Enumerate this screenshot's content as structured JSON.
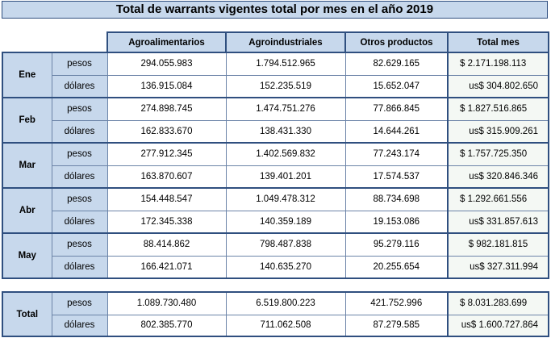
{
  "title": "Total de warrants vigentes total por mes en el año 2019",
  "headers": [
    "Agroalimentarios",
    "Agroindustriales",
    "Otros productos",
    "Total mes"
  ],
  "unit_labels": {
    "pesos": "pesos",
    "dolares": "dólares"
  },
  "months": [
    {
      "label": "Ene",
      "pesos": [
        "294.055.983",
        "1.794.512.965",
        "82.629.165",
        "$ 2.171.198.113"
      ],
      "dolares": [
        "136.915.084",
        "152.235.519",
        "15.652.047",
        "us$ 304.802.650"
      ]
    },
    {
      "label": "Feb",
      "pesos": [
        "274.898.745",
        "1.474.751.276",
        "77.866.845",
        "$ 1.827.516.865"
      ],
      "dolares": [
        "162.833.670",
        "138.431.330",
        "14.644.261",
        "us$ 315.909.261"
      ]
    },
    {
      "label": "Mar",
      "pesos": [
        "277.912.345",
        "1.402.569.832",
        "77.243.174",
        "$ 1.757.725.350"
      ],
      "dolares": [
        "163.870.607",
        "139.401.201",
        "17.574.537",
        "us$ 320.846.346"
      ]
    },
    {
      "label": "Abr",
      "pesos": [
        "154.448.547",
        "1.049.478.312",
        "88.734.698",
        "$ 1.292.661.556"
      ],
      "dolares": [
        "172.345.338",
        "140.359.189",
        "19.153.086",
        "us$ 331.857.613"
      ]
    },
    {
      "label": "May",
      "pesos": [
        "88.414.862",
        "798.487.838",
        "95.279.116",
        "$ 982.181.815"
      ],
      "dolares": [
        "166.421.071",
        "140.635.270",
        "20.255.654",
        "us$ 327.311.994"
      ]
    }
  ],
  "total": {
    "label": "Total",
    "pesos": [
      "1.089.730.480",
      "6.519.800.223",
      "421.752.996",
      "$ 8.031.283.699"
    ],
    "dolares": [
      "802.385.770",
      "711.062.508",
      "87.279.585",
      "us$ 1.600.727.864"
    ]
  }
}
